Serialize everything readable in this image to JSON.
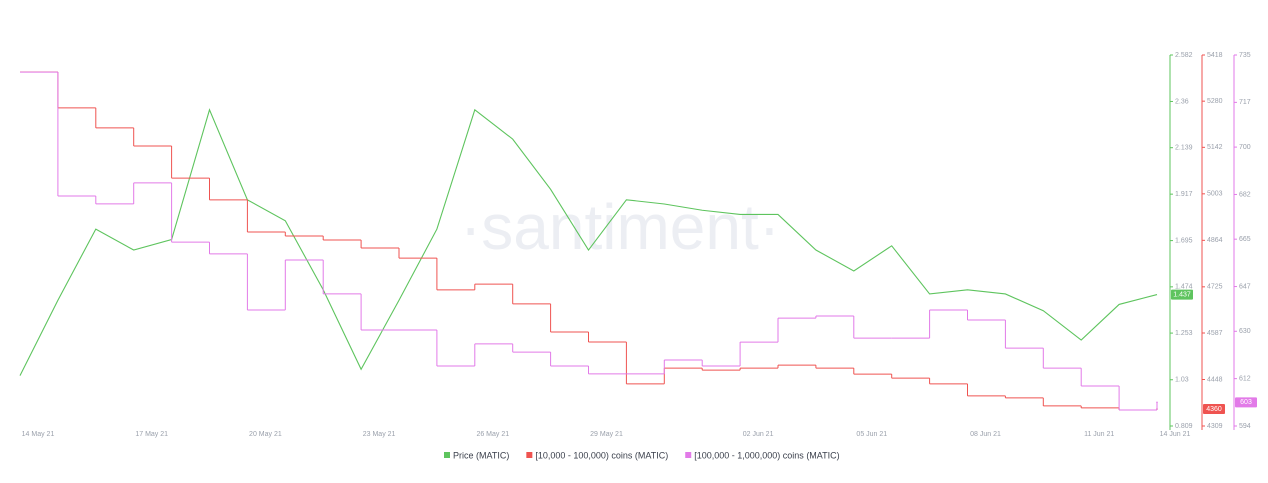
{
  "chart_data": {
    "type": "line",
    "watermark": "·santiment·",
    "x": [
      "14 May 21",
      "15 May 21",
      "16 May 21",
      "17 May 21",
      "18 May 21",
      "19 May 21",
      "20 May 21",
      "21 May 21",
      "22 May 21",
      "23 May 21",
      "24 May 21",
      "25 May 21",
      "26 May 21",
      "27 May 21",
      "28 May 21",
      "29 May 21",
      "30 May 21",
      "31 May 21",
      "01 Jun 21",
      "02 Jun 21",
      "03 Jun 21",
      "04 Jun 21",
      "05 Jun 21",
      "06 Jun 21",
      "07 Jun 21",
      "08 Jun 21",
      "09 Jun 21",
      "10 Jun 21",
      "11 Jun 21",
      "12 Jun 21",
      "14 Jun 21"
    ],
    "xticks": [
      "14 May 21",
      "17 May 21",
      "20 May 21",
      "23 May 21",
      "26 May 21",
      "29 May 21",
      "02 Jun 21",
      "05 Jun 21",
      "08 Jun 21",
      "11 Jun 21",
      "14 Jun 21"
    ],
    "ylim": [
      0.809,
      2.582
    ],
    "yticks": [
      0.809,
      1.03,
      1.253,
      1.474,
      1.695,
      1.917,
      2.139,
      2.36,
      2.582
    ],
    "y2lim": [
      4309,
      5418
    ],
    "y2ticks": [
      4309,
      4448,
      4587,
      4725,
      4864,
      5003,
      5142,
      5280,
      5418
    ],
    "y3lim": [
      594,
      735
    ],
    "y3ticks": [
      594,
      612,
      630,
      647,
      665,
      682,
      700,
      717,
      735
    ],
    "series": [
      {
        "name": "Price (MATIC)",
        "color": "#5ec45e",
        "axis": "y",
        "values": [
          1.05,
          1.41,
          1.75,
          1.65,
          1.7,
          2.32,
          1.89,
          1.79,
          1.46,
          1.08,
          1.41,
          1.75,
          2.32,
          2.18,
          1.94,
          1.65,
          1.89,
          1.87,
          1.84,
          1.82,
          1.82,
          1.65,
          1.55,
          1.67,
          1.44,
          1.46,
          1.44,
          1.36,
          1.22,
          1.39,
          1.437
        ]
      },
      {
        "name": "[10,000 - 100,000) coins (MATIC)",
        "color": "#ef5350",
        "axis": "y2",
        "step": true,
        "values": [
          5367,
          5260,
          5200,
          5146,
          5050,
          4985,
          4889,
          4877,
          4865,
          4841,
          4811,
          4716,
          4733,
          4674,
          4590,
          4560,
          4435,
          4482,
          4476,
          4482,
          4491,
          4482,
          4464,
          4452,
          4435,
          4399,
          4393,
          4369,
          4363,
          4357,
          4360
        ]
      },
      {
        "name": "[100,000  - 1,000,000) coins (MATIC)",
        "color": "#e27ae8",
        "axis": "y3",
        "step": true,
        "values": [
          728.5,
          681.4,
          678.4,
          686.4,
          663.9,
          659.4,
          638.1,
          657.1,
          644.2,
          630.5,
          630.5,
          616.8,
          625.2,
          622.1,
          616.8,
          613.8,
          613.8,
          619.1,
          616.8,
          625.9,
          635.0,
          635.8,
          627.4,
          627.4,
          638.1,
          634.3,
          623.6,
          616.0,
          609.2,
          600.1,
          603
        ]
      }
    ]
  }
}
